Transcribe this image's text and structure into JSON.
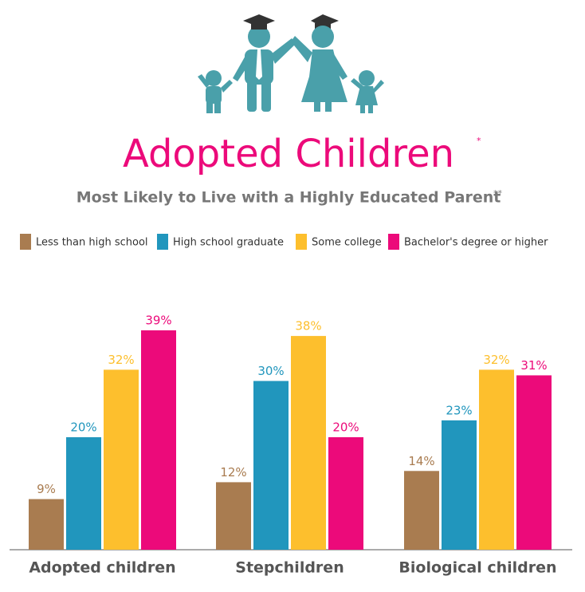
{
  "chart_data": {
    "type": "bar",
    "title": "Adopted Children",
    "title_note": "*",
    "subtitle": "Most Likely to Live with a Highly Educated Parent",
    "subtitle_note": "**",
    "categories": [
      "Adopted children",
      "Stepchildren",
      "Biological children"
    ],
    "series": [
      {
        "name": "Less than high school",
        "color": "#a97c50",
        "values": [
          9,
          12,
          14
        ],
        "value_labels": [
          "9%",
          "12%",
          "14%"
        ]
      },
      {
        "name": "High school graduate",
        "color": "#2196bd",
        "values": [
          20,
          30,
          23
        ],
        "value_labels": [
          "20%",
          "30%",
          "23%"
        ]
      },
      {
        "name": "Some college",
        "color": "#fdbf2d",
        "values": [
          32,
          38,
          32
        ],
        "value_labels": [
          "32%",
          "38%",
          "32%"
        ]
      },
      {
        "name": "Bachelor's degree or higher",
        "color": "#ec0a7a",
        "values": [
          39,
          20,
          31
        ],
        "value_labels": [
          "39%",
          "20%",
          "31%"
        ]
      }
    ],
    "title_color": "#ec0a7a",
    "subtitle_color": "#777777"
  }
}
